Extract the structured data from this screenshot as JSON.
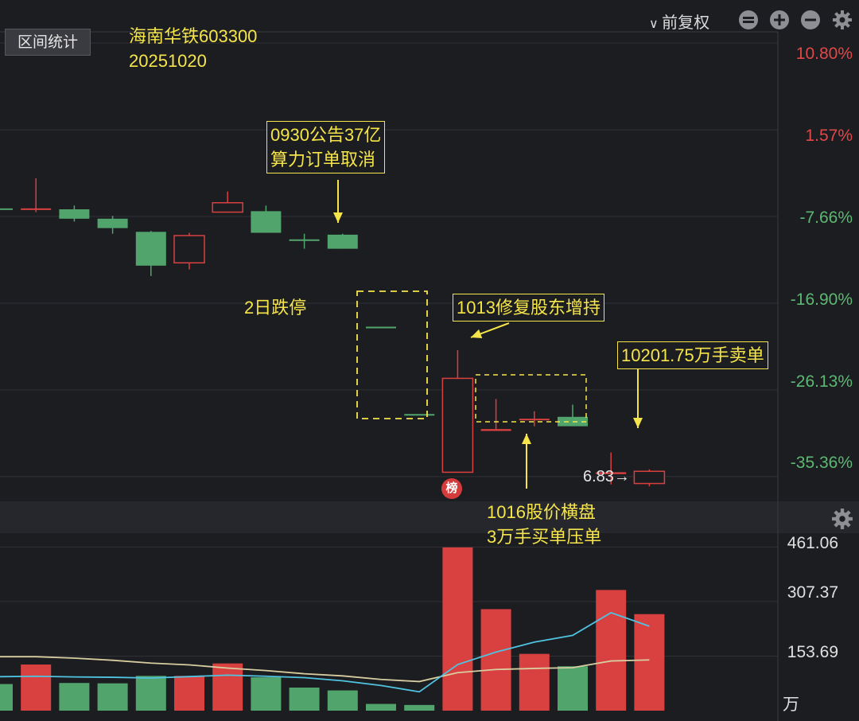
{
  "header": {
    "range_button": "区间统计",
    "adjust_mode": "前复权",
    "icons": [
      "zoom-fit-icon",
      "zoom-in-icon",
      "zoom-out-icon",
      "gear-icon"
    ]
  },
  "stock": {
    "name_code": "海南华铁603300",
    "date": "20251020"
  },
  "annotations": {
    "a1": "0930公告37亿\n算力订单取消",
    "a2": "2日跌停",
    "a3": "1013修复股东增持",
    "a4": "10201.75万手卖单",
    "a5": "1016股价横盘\n3万手买单压单",
    "bang": "榜",
    "last_price": "6.83→"
  },
  "axis": {
    "price_ticks": [
      "10.80%",
      "1.57%",
      "-7.66%",
      "-16.90%",
      "-26.13%",
      "-35.36%"
    ],
    "volume_ticks": [
      "461.06",
      "307.37",
      "153.69"
    ],
    "volume_unit": "万"
  },
  "colors": {
    "up": "#d94040",
    "down": "#52a46d",
    "annotation": "#f5e54a",
    "ma5": "#4fc3e0",
    "ma10": "#d8cda0",
    "pos_label": "#e04848",
    "neg_label": "#5cb872"
  },
  "chart_data": {
    "type": "candlestick",
    "y_axis": "percent change",
    "ylim": [
      -38.0,
      12.0
    ],
    "candles": [
      {
        "o": -6.8,
        "c": -6.8,
        "h": -6.6,
        "l": -7.0,
        "dir": "down"
      },
      {
        "o": -6.8,
        "c": -6.9,
        "h": -3.6,
        "l": -7.2,
        "dir": "up"
      },
      {
        "o": -6.9,
        "c": -7.9,
        "h": -6.5,
        "l": -8.2,
        "dir": "down"
      },
      {
        "o": -7.9,
        "c": -8.9,
        "h": -7.6,
        "l": -9.5,
        "dir": "down"
      },
      {
        "o": -9.3,
        "c": -12.9,
        "h": -9.2,
        "l": -14.0,
        "dir": "down"
      },
      {
        "o": -12.6,
        "c": -9.7,
        "h": -9.4,
        "l": -13.3,
        "dir": "up"
      },
      {
        "o": -7.2,
        "c": -6.2,
        "h": -5.0,
        "l": -7.2,
        "dir": "up"
      },
      {
        "o": -7.1,
        "c": -9.4,
        "h": -6.5,
        "l": -9.4,
        "dir": "down"
      },
      {
        "o": -10.1,
        "c": -10.1,
        "h": -9.5,
        "l": -11.1,
        "dir": "down"
      },
      {
        "o": -9.6,
        "c": -11.1,
        "h": -9.5,
        "l": -11.1,
        "dir": "down"
      },
      {
        "o": -19.4,
        "c": -19.4,
        "h": -19.4,
        "l": -19.4,
        "dir": "down"
      },
      {
        "o": -28.7,
        "c": -28.7,
        "h": -28.7,
        "l": -28.7,
        "dir": "down"
      },
      {
        "o": -34.9,
        "c": -24.9,
        "h": -21.9,
        "l": -34.9,
        "dir": "up"
      },
      {
        "o": -30.5,
        "c": -30.3,
        "h": -27.1,
        "l": -30.5,
        "dir": "up"
      },
      {
        "o": -29.2,
        "c": -29.2,
        "h": -28.4,
        "l": -30.0,
        "dir": "up"
      },
      {
        "o": -29.0,
        "c": -30.0,
        "h": -27.7,
        "l": -30.0,
        "dir": "down"
      },
      {
        "o": -35.1,
        "c": -34.9,
        "h": -32.8,
        "l": -36.2,
        "dir": "up"
      },
      {
        "o": -36.1,
        "c": -34.8,
        "h": -34.6,
        "l": -36.4,
        "dir": "up"
      }
    ],
    "volume": {
      "ylim": [
        0,
        500
      ],
      "values": [
        75,
        130,
        78,
        77,
        98,
        98,
        133,
        94,
        65,
        57,
        19,
        16,
        460,
        286,
        160,
        125,
        340,
        272
      ],
      "ma5": [
        95,
        97,
        95,
        94,
        92,
        96,
        100,
        97,
        93,
        84,
        71,
        53,
        130,
        165,
        193,
        212,
        276,
        238
      ],
      "ma10": [
        152,
        152,
        148,
        142,
        134,
        129,
        120,
        113,
        104,
        98,
        88,
        82,
        107,
        116,
        119,
        121,
        140,
        143
      ]
    }
  }
}
